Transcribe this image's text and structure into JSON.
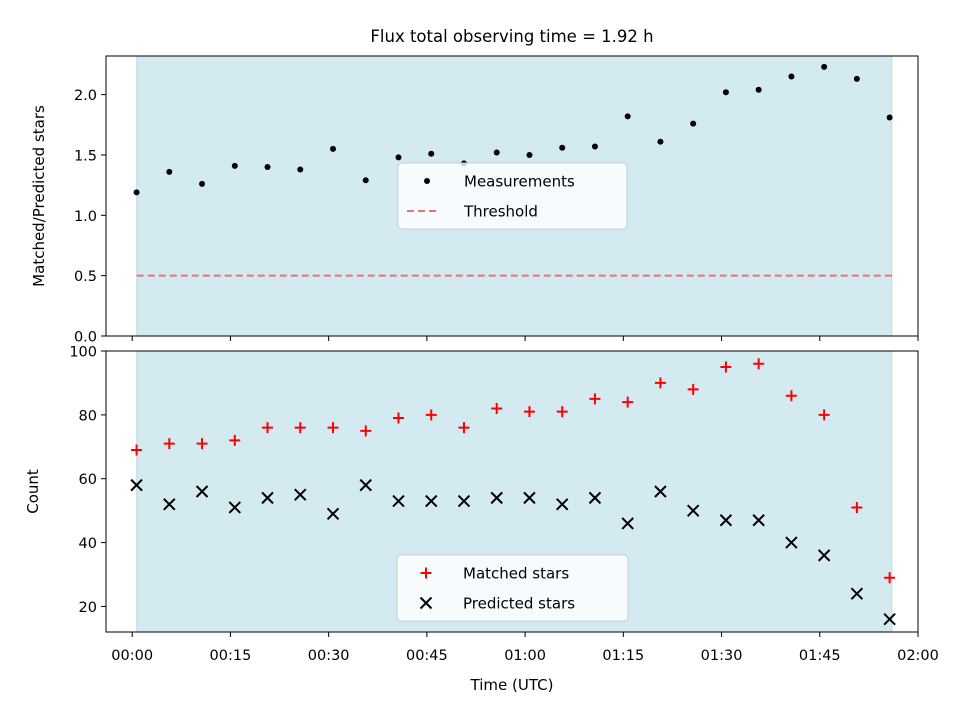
{
  "title": "Flux total observing time = 1.92 h",
  "colors": {
    "shade": "#d3eaf0",
    "measurements": "#000000",
    "threshold": "#f07070",
    "matched": "#ff0000",
    "predicted": "#000000"
  },
  "chart_data": [
    {
      "type": "scatter",
      "ylabel": "Matched/Predicted stars",
      "ylim": [
        0,
        2.32
      ],
      "yticks": [
        0,
        0.5,
        1.0,
        1.5,
        2.0
      ],
      "ytick_labels": [
        "0.0",
        "0.5",
        "1.0",
        "1.5",
        "2.0"
      ],
      "xlim_minutes": [
        -4,
        120
      ],
      "shaded_span_minutes": [
        0.7,
        116
      ],
      "legend": {
        "position": "center",
        "entries": [
          "Measurements",
          "Threshold"
        ]
      },
      "threshold": {
        "name": "Threshold",
        "y": 0.5,
        "style": "dashed"
      },
      "series": [
        {
          "name": "Measurements",
          "marker": "dot",
          "x": [
            "00:00:40",
            "00:05:40",
            "00:10:40",
            "00:15:40",
            "00:20:40",
            "00:25:40",
            "00:30:40",
            "00:35:40",
            "00:40:40",
            "00:45:40",
            "00:50:40",
            "00:55:40",
            "01:00:40",
            "01:05:40",
            "01:10:40",
            "01:15:40",
            "01:20:40",
            "01:25:40",
            "01:30:40",
            "01:35:40",
            "01:40:40",
            "01:45:40",
            "01:50:40",
            "01:55:40"
          ],
          "y": [
            1.19,
            1.36,
            1.26,
            1.41,
            1.4,
            1.38,
            1.55,
            1.29,
            1.48,
            1.51,
            1.43,
            1.52,
            1.5,
            1.56,
            1.57,
            1.82,
            1.61,
            1.76,
            2.02,
            2.04,
            2.15,
            2.23,
            2.13,
            1.81
          ]
        }
      ]
    },
    {
      "type": "scatter",
      "xlabel": "Time (UTC)",
      "ylabel": "Count",
      "ylim": [
        12,
        100
      ],
      "yticks": [
        20,
        40,
        60,
        80,
        100
      ],
      "ytick_labels": [
        "20",
        "40",
        "60",
        "80",
        "100"
      ],
      "xlim_minutes": [
        -4,
        120
      ],
      "xticks_minutes": [
        0,
        15,
        30,
        45,
        60,
        75,
        90,
        105,
        120
      ],
      "xtick_labels": [
        "00:00",
        "00:15",
        "00:30",
        "00:45",
        "01:00",
        "01:15",
        "01:30",
        "01:45",
        "02:00"
      ],
      "shaded_span_minutes": [
        0.7,
        116
      ],
      "legend": {
        "position": "lower center",
        "entries": [
          "Matched stars",
          "Predicted stars"
        ]
      },
      "series": [
        {
          "name": "Matched stars",
          "marker": "plus",
          "x": [
            "00:00:40",
            "00:05:40",
            "00:10:40",
            "00:15:40",
            "00:20:40",
            "00:25:40",
            "00:30:40",
            "00:35:40",
            "00:40:40",
            "00:45:40",
            "00:50:40",
            "00:55:40",
            "01:00:40",
            "01:05:40",
            "01:10:40",
            "01:15:40",
            "01:20:40",
            "01:25:40",
            "01:30:40",
            "01:35:40",
            "01:40:40",
            "01:45:40",
            "01:50:40",
            "01:55:40"
          ],
          "y": [
            69,
            71,
            71,
            72,
            76,
            76,
            76,
            75,
            79,
            80,
            76,
            82,
            81,
            81,
            85,
            84,
            90,
            88,
            95,
            96,
            86,
            80,
            51,
            29
          ]
        },
        {
          "name": "Predicted stars",
          "marker": "x",
          "x": [
            "00:00:40",
            "00:05:40",
            "00:10:40",
            "00:15:40",
            "00:20:40",
            "00:25:40",
            "00:30:40",
            "00:35:40",
            "00:40:40",
            "00:45:40",
            "00:50:40",
            "00:55:40",
            "01:00:40",
            "01:05:40",
            "01:10:40",
            "01:15:40",
            "01:20:40",
            "01:25:40",
            "01:30:40",
            "01:35:40",
            "01:40:40",
            "01:45:40",
            "01:50:40",
            "01:55:40"
          ],
          "y": [
            58,
            52,
            56,
            51,
            54,
            55,
            49,
            58,
            53,
            53,
            53,
            54,
            54,
            52,
            54,
            46,
            56,
            50,
            47,
            47,
            40,
            36,
            24,
            16
          ]
        }
      ]
    }
  ]
}
